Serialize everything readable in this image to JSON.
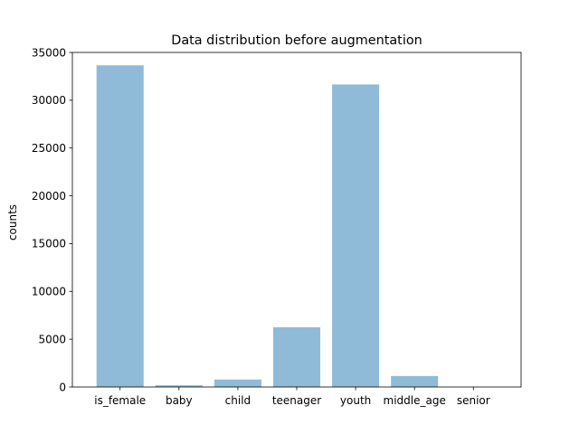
{
  "chart_data": {
    "type": "bar",
    "title": "Data distribution before augmentation",
    "xlabel": "",
    "ylabel": "counts",
    "categories": [
      "is_female",
      "baby",
      "child",
      "teenager",
      "youth",
      "middle_age",
      "senior"
    ],
    "values": [
      33650,
      180,
      780,
      6250,
      31650,
      1150,
      0
    ],
    "ylim": [
      0,
      35000
    ],
    "yticks": [
      0,
      5000,
      10000,
      15000,
      20000,
      25000,
      30000,
      35000
    ],
    "ytick_labels": [
      "0",
      "5000",
      "10000",
      "15000",
      "20000",
      "25000",
      "30000",
      "35000"
    ],
    "grid": false,
    "legend": "none",
    "colors": {
      "bar": "#8fbbd9",
      "axis": "#000000"
    }
  }
}
